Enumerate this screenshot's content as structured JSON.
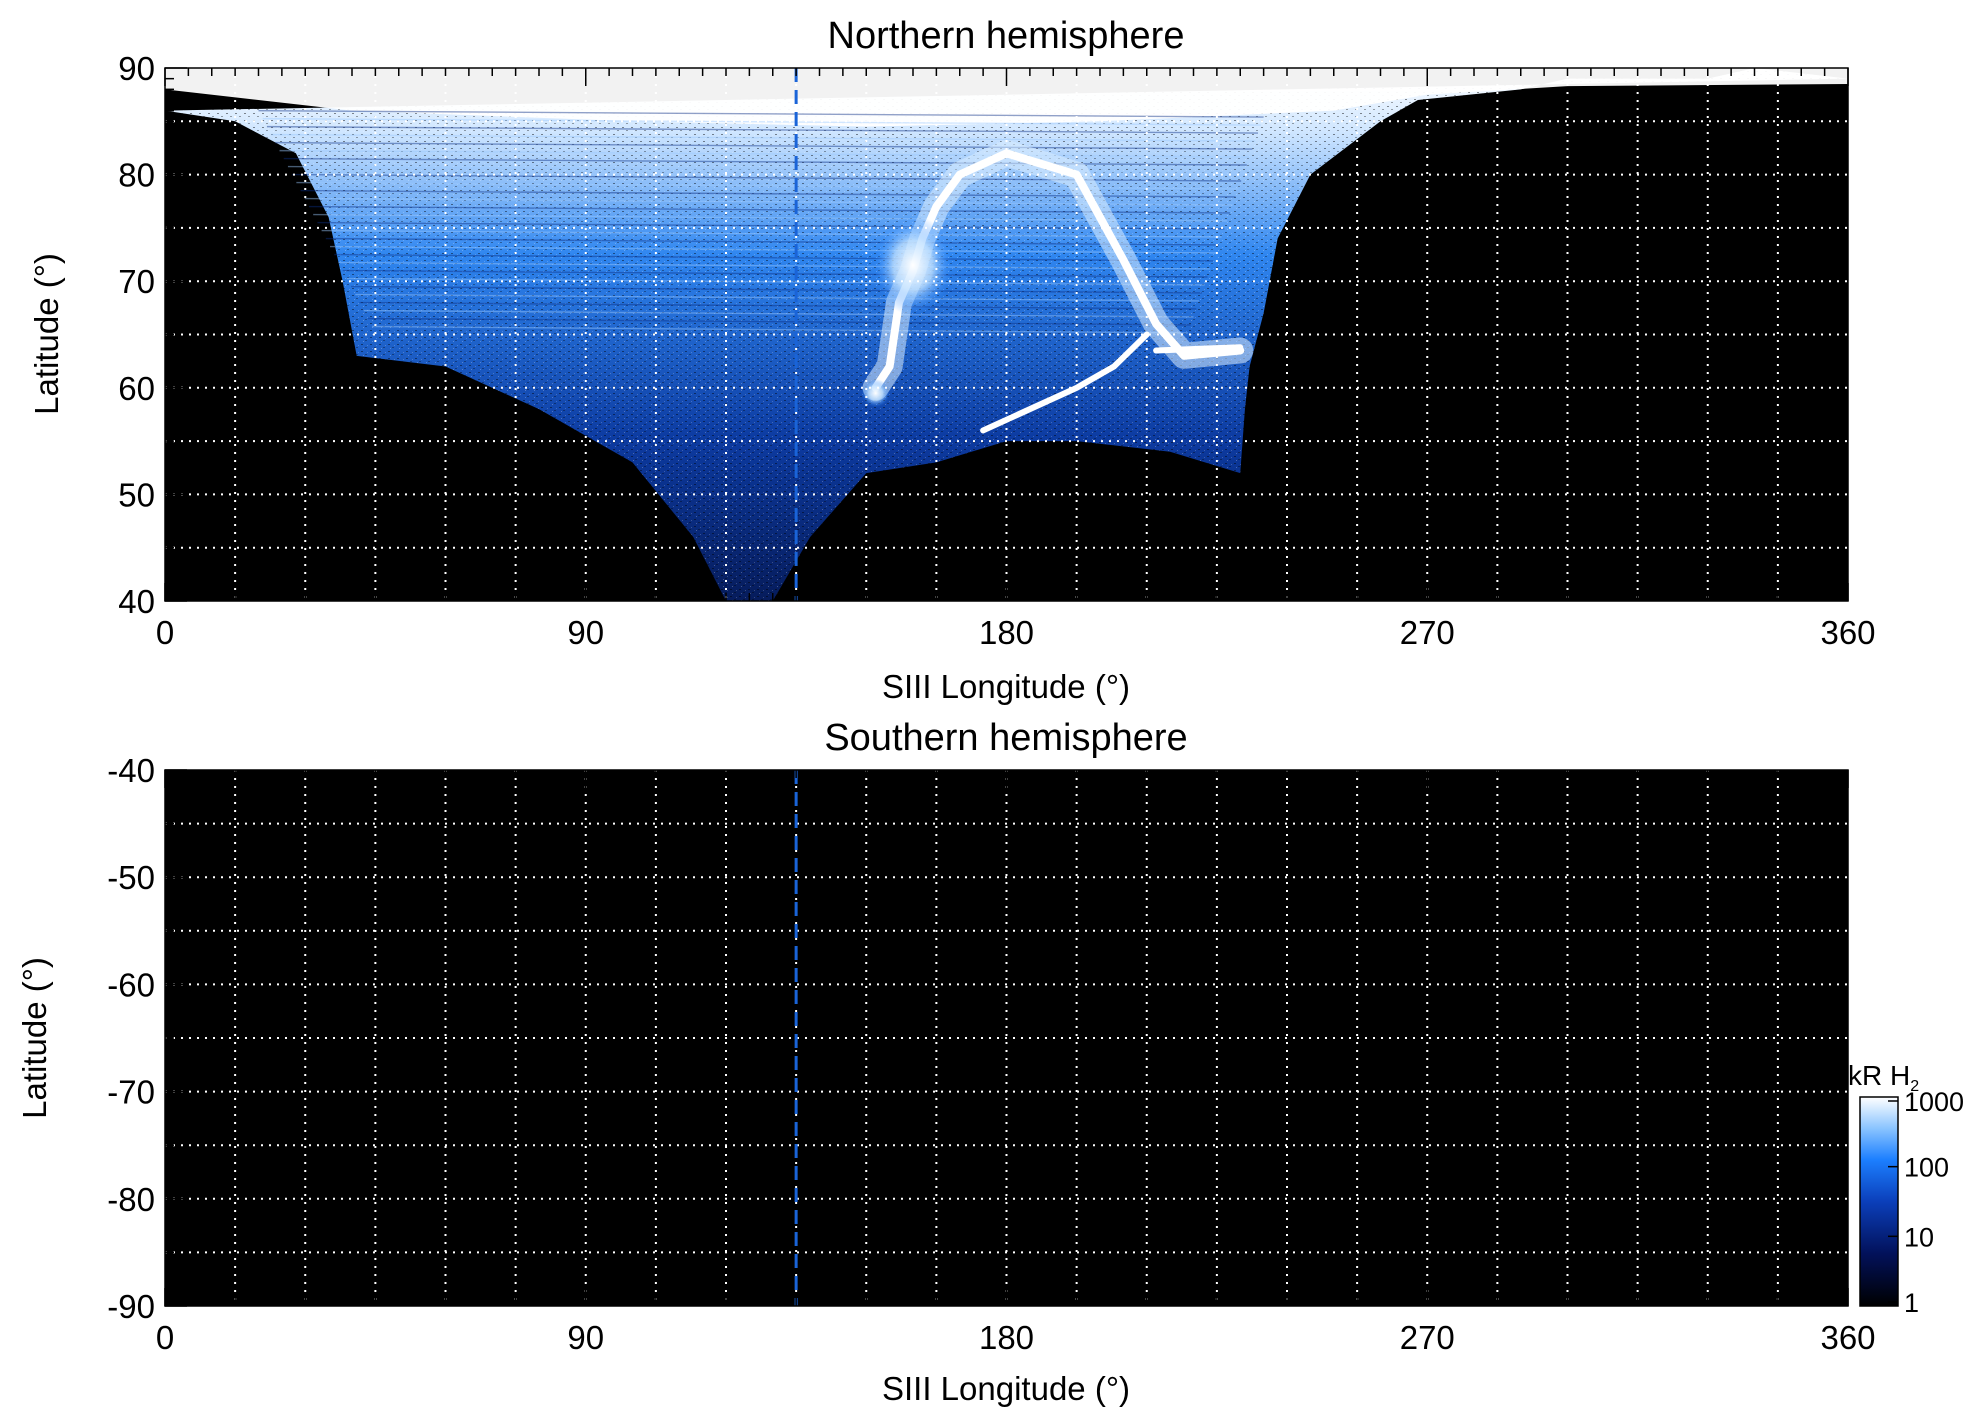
{
  "chart_data": [
    {
      "type": "heatmap",
      "title": "Northern hemisphere",
      "xlabel": "SIII Longitude (°)",
      "ylabel": "Latitude (°)",
      "xlim": [
        0,
        360
      ],
      "ylim": [
        40,
        90
      ],
      "x_ticks": [
        0,
        90,
        180,
        270,
        360
      ],
      "y_ticks": [
        40,
        50,
        60,
        70,
        80,
        90
      ],
      "grid": "dotted",
      "grid_x": [
        15,
        30,
        45,
        60,
        75,
        90,
        105,
        120,
        135,
        150,
        165,
        180,
        195,
        210,
        225,
        240,
        255,
        270,
        285,
        300,
        315,
        330,
        345
      ],
      "grid_y": [
        45,
        50,
        55,
        60,
        65,
        70,
        75,
        80,
        85
      ],
      "marker_longitude": 135,
      "marker_style": "dashed",
      "marker_color": "#1a64d8",
      "features": {
        "coverage_boundary": [
          [
            0,
            86
          ],
          [
            15,
            85
          ],
          [
            28,
            82
          ],
          [
            35,
            76
          ],
          [
            38,
            70
          ],
          [
            41,
            63
          ],
          [
            60,
            62
          ],
          [
            80,
            58
          ],
          [
            100,
            53
          ],
          [
            113,
            46
          ],
          [
            120,
            40
          ],
          [
            130,
            40
          ],
          [
            138,
            46
          ],
          [
            150,
            52
          ],
          [
            165,
            53
          ],
          [
            180,
            55
          ],
          [
            195,
            55
          ],
          [
            215,
            54
          ],
          [
            230,
            52
          ],
          [
            231,
            58
          ],
          [
            232,
            62
          ],
          [
            235,
            67
          ],
          [
            238,
            74
          ],
          [
            245,
            80
          ],
          [
            260,
            85
          ],
          [
            268,
            87
          ],
          [
            290,
            88
          ],
          [
            300,
            89
          ],
          [
            330,
            89
          ],
          [
            340,
            90
          ],
          [
            360,
            89
          ]
        ],
        "bright_oval": [
          [
            152,
            60
          ],
          [
            155,
            62
          ],
          [
            157,
            68
          ],
          [
            160,
            71
          ],
          [
            162,
            74
          ],
          [
            165,
            77
          ],
          [
            170,
            80
          ],
          [
            180,
            82
          ],
          [
            195,
            80
          ],
          [
            205,
            72
          ],
          [
            212,
            66
          ],
          [
            218,
            63
          ],
          [
            230,
            63.5
          ]
        ],
        "arc": [
          [
            175,
            56
          ],
          [
            185,
            58
          ],
          [
            195,
            60
          ],
          [
            203,
            62
          ],
          [
            210,
            65
          ]
        ]
      }
    },
    {
      "type": "heatmap",
      "title": "Southern hemisphere",
      "xlabel": "SIII Longitude (°)",
      "ylabel": "Latitude (°)",
      "xlim": [
        0,
        360
      ],
      "ylim": [
        -90,
        -40
      ],
      "x_ticks": [
        0,
        90,
        180,
        270,
        360
      ],
      "y_ticks": [
        -40,
        -50,
        -60,
        -70,
        -80,
        -90
      ],
      "grid": "dotted",
      "grid_x": [
        15,
        30,
        45,
        60,
        75,
        90,
        105,
        120,
        135,
        150,
        165,
        180,
        195,
        210,
        225,
        240,
        255,
        270,
        285,
        300,
        315,
        330,
        345
      ],
      "grid_y": [
        -85,
        -80,
        -75,
        -70,
        -65,
        -60,
        -55,
        -50,
        -45
      ],
      "marker_longitude": 135,
      "marker_style": "dashed",
      "marker_color": "#1a64d8",
      "features": {}
    }
  ],
  "colorbar": {
    "label": "kR H",
    "label_subscript": "2",
    "scale": "log",
    "ticks": [
      "1000",
      "100",
      "10",
      "1"
    ],
    "tick_values": [
      1000,
      100,
      10,
      1
    ],
    "range": [
      1,
      1000
    ],
    "colors": [
      "#000000",
      "#02115a",
      "#0b3fba",
      "#1c7fff",
      "#8ac4ff",
      "#ffffff"
    ]
  }
}
